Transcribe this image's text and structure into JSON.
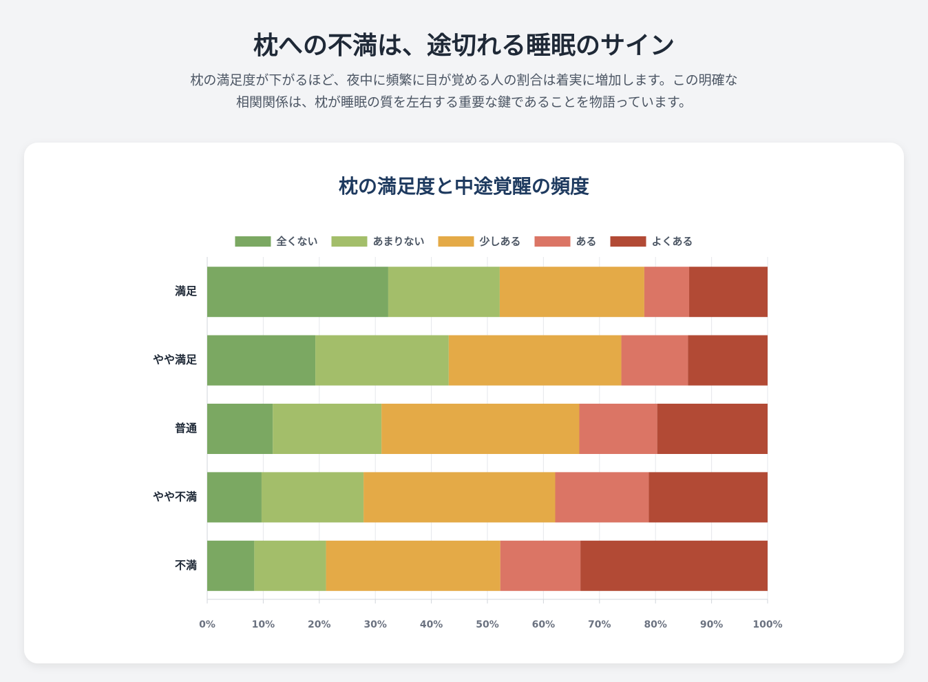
{
  "header": {
    "title": "枕への不満は、途切れる睡眠のサイン",
    "subtitle": [
      "枕の満足度が下がるほど、夜中に頻繁に目が覚める人の割合は着実に増加します。この明確な",
      "相関関係は、枕が睡眠の質を左右する重要な鍵であることを物語っています。"
    ]
  },
  "chart_data": {
    "type": "stacked-bar-horizontal",
    "title": "枕の満足度と中途覚醒の頻度",
    "categories": [
      "満足",
      "やや満足",
      "普通",
      "やや不満",
      "不満"
    ],
    "series": [
      {
        "name": "全くない",
        "color": "#7ba862",
        "values": [
          32.3,
          19.3,
          11.7,
          9.7,
          8.4
        ]
      },
      {
        "name": "あまりない",
        "color": "#a3be6a",
        "values": [
          19.9,
          23.8,
          19.4,
          18.2,
          12.8
        ]
      },
      {
        "name": "少しある",
        "color": "#e4aa47",
        "values": [
          25.8,
          30.8,
          35.3,
          34.2,
          31.1
        ]
      },
      {
        "name": "ある",
        "color": "#db7565",
        "values": [
          8.0,
          11.9,
          13.9,
          16.7,
          14.3
        ]
      },
      {
        "name": "よくある",
        "color": "#b24a35",
        "values": [
          14.0,
          14.2,
          19.7,
          21.2,
          33.4
        ]
      }
    ],
    "xlim": [
      0,
      100
    ],
    "xticks": [
      {
        "value": 0,
        "label": "0%"
      },
      {
        "value": 10,
        "label": "10%"
      },
      {
        "value": 20,
        "label": "20%"
      },
      {
        "value": 30,
        "label": "30%"
      },
      {
        "value": 40,
        "label": "40%"
      },
      {
        "value": 50,
        "label": "50%"
      },
      {
        "value": 60,
        "label": "60%"
      },
      {
        "value": 70,
        "label": "70%"
      },
      {
        "value": 80,
        "label": "80%"
      },
      {
        "value": 90,
        "label": "90%"
      },
      {
        "value": 100,
        "label": "100%"
      }
    ],
    "grid": true,
    "legend": "top"
  }
}
